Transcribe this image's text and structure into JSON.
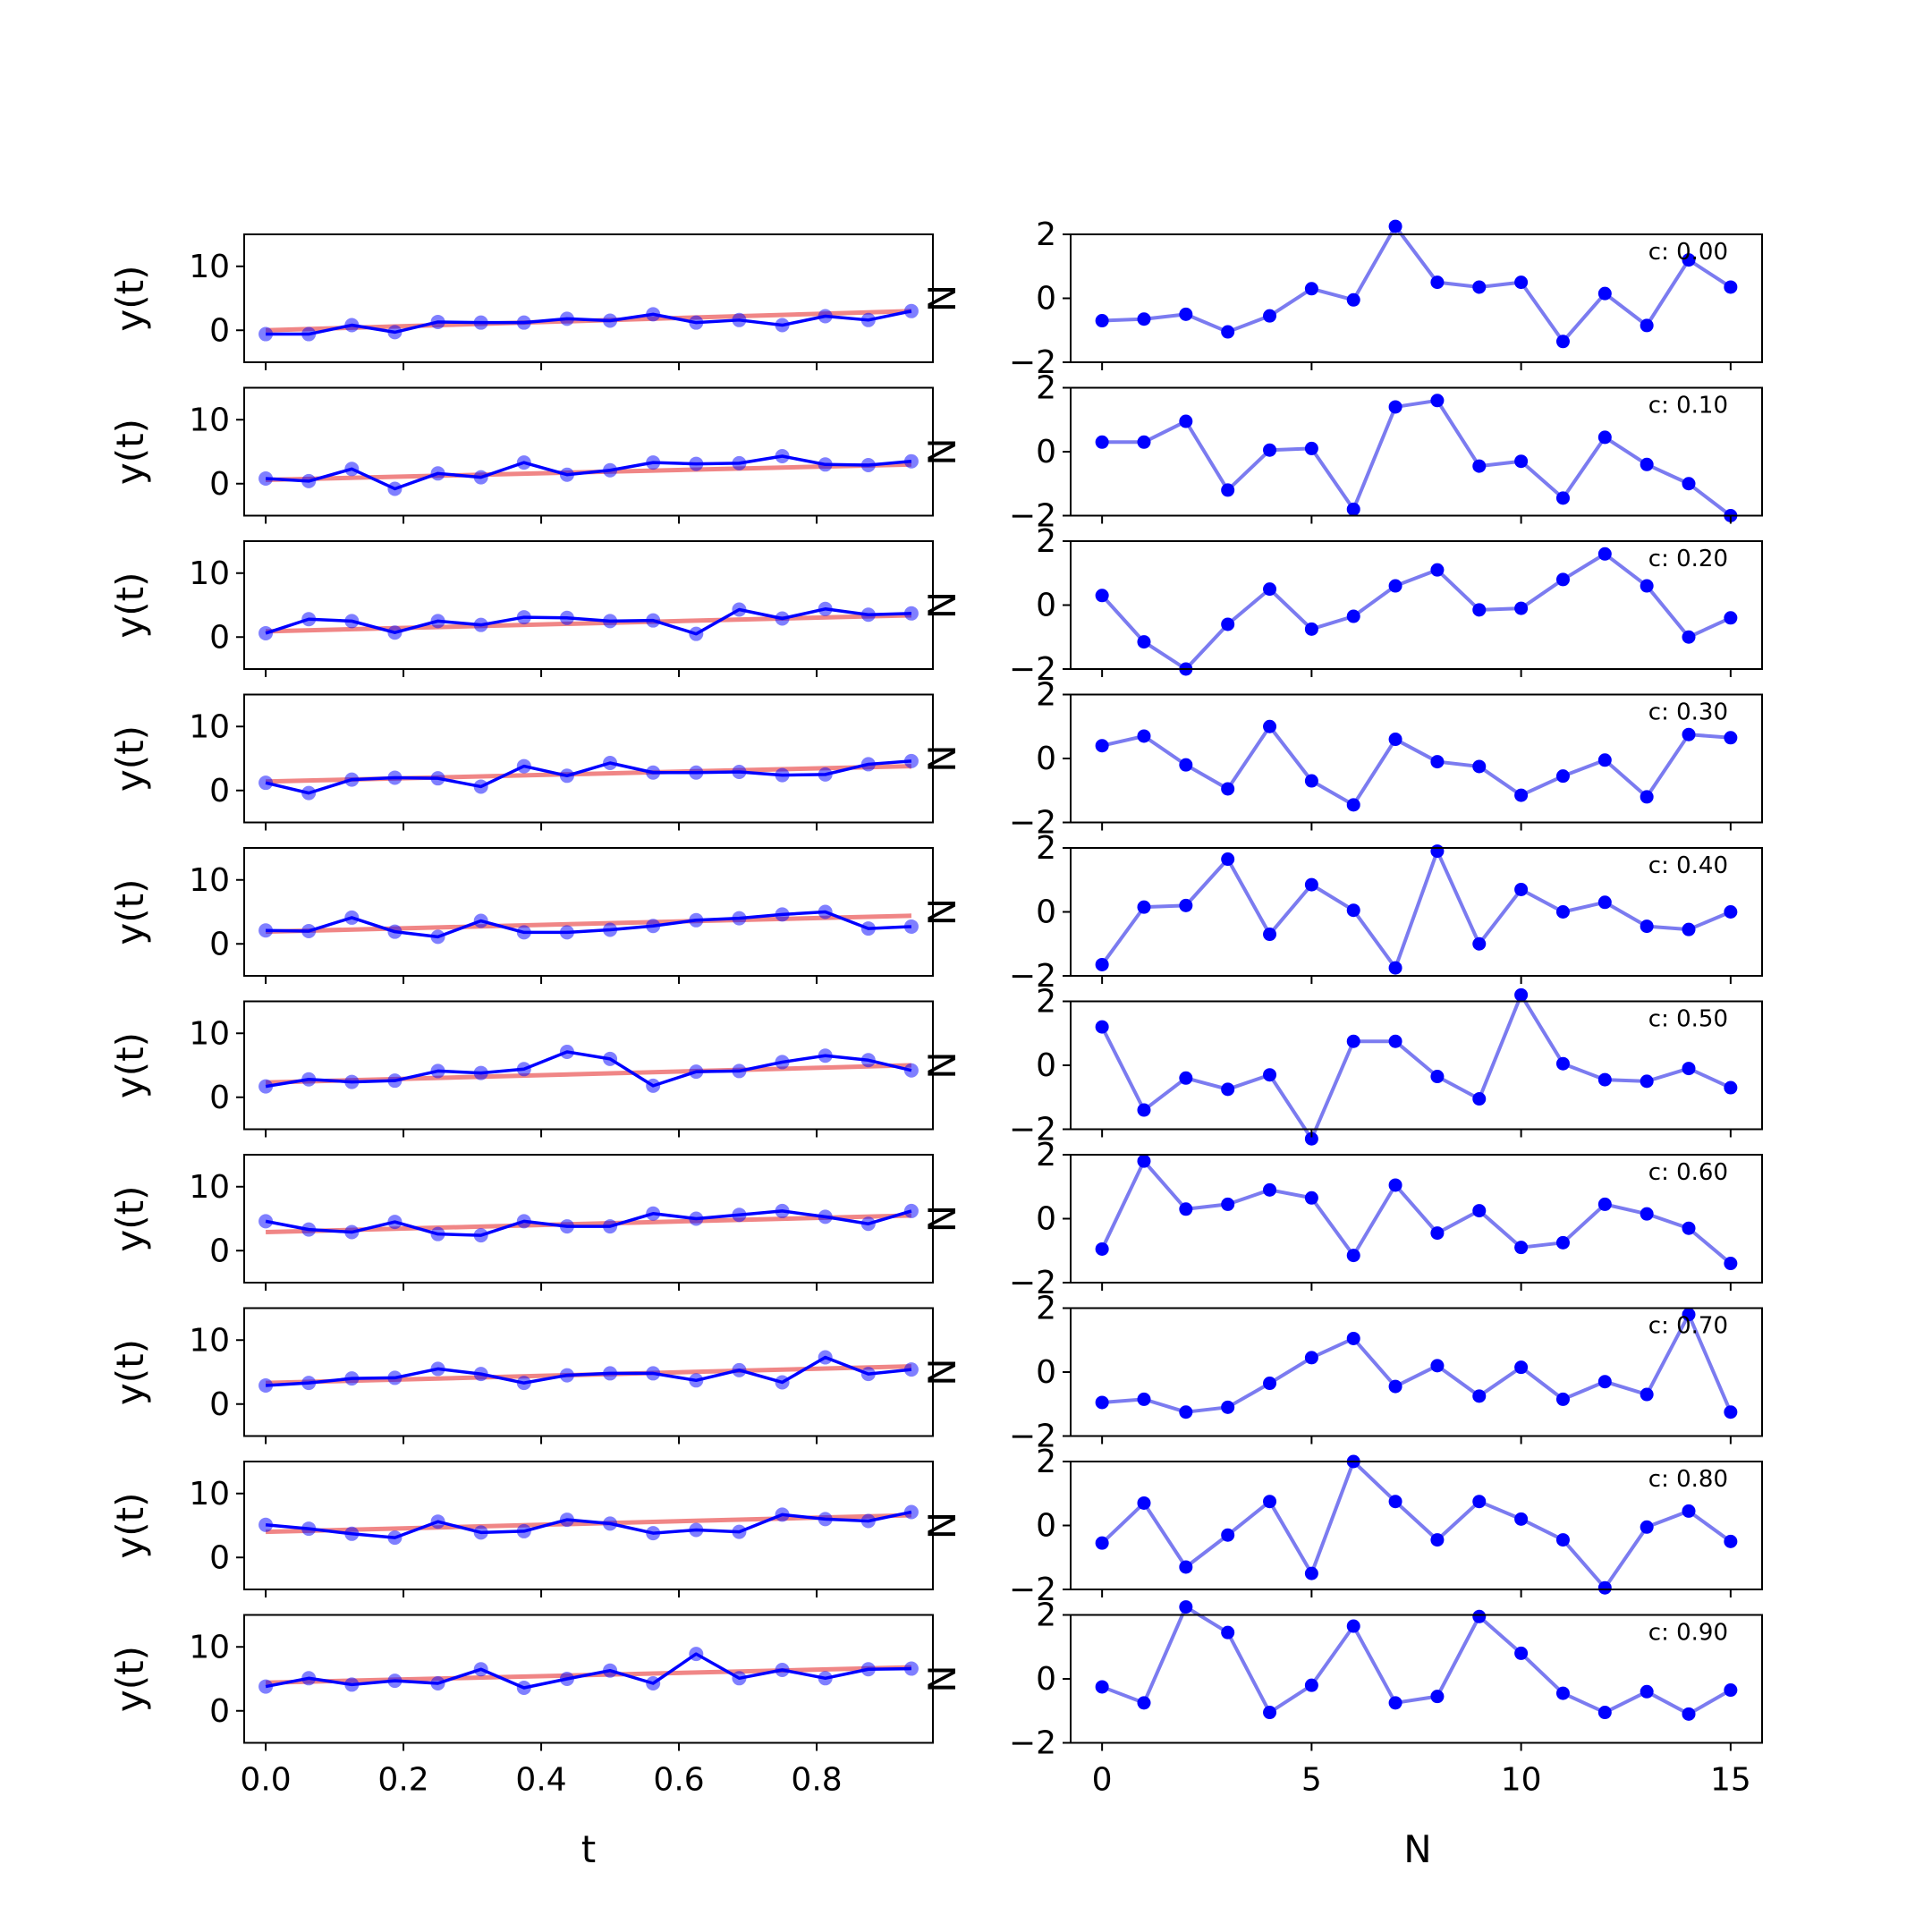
{
  "chart_data": {
    "type": "line",
    "left_column": {
      "xlabel": "t",
      "ylabel": "y(t)",
      "xlim": [
        -0.03125,
        0.96875
      ],
      "ylim": [
        -5,
        15
      ],
      "xticks": [
        0.0,
        0.2,
        0.4,
        0.6,
        0.8
      ],
      "xtick_labels": [
        "0.0",
        "0.2",
        "0.4",
        "0.6",
        "0.8"
      ],
      "yticks": [
        0,
        10
      ],
      "ytick_labels": [
        "0",
        "10"
      ],
      "x": [
        0,
        0.0625,
        0.125,
        0.1875,
        0.25,
        0.3125,
        0.375,
        0.4375,
        0.5,
        0.5625,
        0.625,
        0.6875,
        0.75,
        0.8125,
        0.875,
        0.9375
      ],
      "series_color": "#0000ff",
      "trend_color": "#f08080"
    },
    "right_column": {
      "xlabel": "N",
      "ylabel_glyph": "N",
      "xlim": [
        -0.75,
        15.75
      ],
      "ylim": [
        -2,
        2
      ],
      "xticks": [
        0,
        5,
        10,
        15
      ],
      "xtick_labels": [
        "0",
        "5",
        "10",
        "15"
      ],
      "yticks": [
        -2,
        0,
        2
      ],
      "ytick_labels": [
        "−2",
        "0",
        "2"
      ],
      "x": [
        0,
        1,
        2,
        3,
        4,
        5,
        6,
        7,
        8,
        9,
        10,
        11,
        12,
        13,
        14,
        15
      ],
      "line_color": "#7b7bf0",
      "marker_color": "#0000ff"
    },
    "panels": [
      {
        "annotation": "c: 0.00",
        "trend": [
          0.0,
          3.0
        ],
        "y": [
          -0.6,
          -0.6,
          0.8,
          -0.3,
          1.3,
          1.2,
          1.2,
          1.8,
          1.5,
          2.5,
          1.2,
          1.6,
          0.8,
          2.2,
          1.6,
          3.0
        ],
        "noise": [
          -0.7,
          -0.65,
          -0.5,
          -1.05,
          -0.55,
          0.3,
          -0.05,
          2.25,
          0.5,
          0.35,
          0.5,
          -1.35,
          0.15,
          -0.85,
          1.2,
          0.35
        ]
      },
      {
        "annotation": "c: 0.10",
        "trend": [
          0.6,
          3.0
        ],
        "y": [
          0.8,
          0.4,
          2.3,
          -0.8,
          1.6,
          1.0,
          3.3,
          1.4,
          2.1,
          3.3,
          3.1,
          3.2,
          4.3,
          3.0,
          2.9,
          3.5
        ],
        "noise": [
          0.3,
          0.3,
          0.95,
          -1.2,
          0.05,
          0.1,
          -1.8,
          1.4,
          1.6,
          -0.45,
          -0.3,
          -1.45,
          0.45,
          -0.4,
          -1.0,
          -2.0
        ]
      },
      {
        "annotation": "c: 0.20",
        "trend": [
          0.9,
          3.4
        ],
        "y": [
          0.6,
          2.8,
          2.5,
          0.7,
          2.5,
          1.9,
          3.1,
          3.0,
          2.5,
          2.6,
          0.5,
          4.3,
          2.9,
          4.4,
          3.5,
          3.7
        ],
        "noise": [
          0.3,
          -1.15,
          -2.0,
          -0.6,
          0.5,
          -0.75,
          -0.35,
          0.6,
          1.1,
          -0.15,
          -0.1,
          0.8,
          1.6,
          0.6,
          -1.0,
          -0.4
        ]
      },
      {
        "annotation": "c: 0.30",
        "trend": [
          1.4,
          3.8
        ],
        "y": [
          1.2,
          -0.4,
          1.7,
          2.0,
          1.9,
          0.6,
          3.8,
          2.3,
          4.3,
          2.8,
          2.8,
          2.9,
          2.4,
          2.5,
          4.1,
          4.6
        ],
        "noise": [
          0.4,
          0.7,
          -0.2,
          -0.95,
          1.0,
          -0.7,
          -1.45,
          0.6,
          -0.1,
          -0.25,
          -1.15,
          -0.55,
          -0.05,
          -1.2,
          0.75,
          0.65
        ]
      },
      {
        "annotation": "c: 0.40",
        "trend": [
          1.9,
          4.4
        ],
        "y": [
          2.1,
          2.0,
          4.1,
          1.9,
          1.1,
          3.6,
          1.8,
          1.8,
          2.2,
          2.8,
          3.7,
          4.0,
          4.6,
          5.0,
          2.4,
          2.7
        ],
        "noise": [
          -1.65,
          0.15,
          0.2,
          1.65,
          -0.7,
          0.85,
          0.05,
          -1.75,
          1.9,
          -1.0,
          0.7,
          0.0,
          0.3,
          -0.45,
          -0.55,
          0.0
        ]
      },
      {
        "annotation": "c: 0.50",
        "trend": [
          2.3,
          5.0
        ],
        "y": [
          1.7,
          2.8,
          2.4,
          2.6,
          4.1,
          3.8,
          4.4,
          7.1,
          6.0,
          1.8,
          4.0,
          4.1,
          5.5,
          6.5,
          5.8,
          4.2
        ],
        "noise": [
          1.2,
          -1.4,
          -0.4,
          -0.75,
          -0.3,
          -2.3,
          0.75,
          0.75,
          -0.35,
          -1.05,
          2.2,
          0.05,
          -0.45,
          -0.5,
          -0.1,
          -0.7
        ]
      },
      {
        "annotation": "c: 0.60",
        "trend": [
          2.9,
          5.5
        ],
        "y": [
          4.6,
          3.3,
          2.9,
          4.5,
          2.6,
          2.4,
          4.6,
          3.8,
          3.8,
          5.8,
          5.0,
          5.6,
          6.2,
          5.3,
          4.2,
          6.2
        ],
        "noise": [
          -0.95,
          1.8,
          0.3,
          0.45,
          0.9,
          0.65,
          -1.15,
          1.05,
          -0.45,
          0.25,
          -0.9,
          -0.75,
          0.45,
          0.15,
          -0.3,
          -1.4
        ]
      },
      {
        "annotation": "c: 0.70",
        "trend": [
          3.3,
          5.9
        ],
        "y": [
          2.9,
          3.3,
          4.0,
          4.1,
          5.5,
          4.7,
          3.3,
          4.5,
          4.8,
          4.8,
          3.7,
          5.3,
          3.4,
          7.3,
          4.7,
          5.4
        ],
        "noise": [
          -0.95,
          -0.85,
          -1.25,
          -1.1,
          -0.35,
          0.45,
          1.05,
          -0.45,
          0.2,
          -0.75,
          0.15,
          -0.85,
          -0.3,
          -0.7,
          1.8,
          -1.25
        ]
      },
      {
        "annotation": "c: 0.80",
        "trend": [
          4.0,
          6.6
        ],
        "y": [
          5.1,
          4.5,
          3.7,
          3.1,
          5.6,
          3.9,
          4.1,
          5.9,
          5.3,
          3.8,
          4.3,
          4.0,
          6.7,
          6.0,
          5.7,
          7.1
        ],
        "noise": [
          -0.55,
          0.7,
          -1.3,
          -0.3,
          0.75,
          -1.5,
          2.0,
          0.75,
          -0.45,
          0.75,
          0.2,
          -0.45,
          -1.95,
          -0.05,
          0.45,
          -0.5
        ]
      },
      {
        "annotation": "c: 0.90",
        "trend": [
          4.4,
          6.8
        ],
        "y": [
          3.8,
          5.1,
          4.1,
          4.7,
          4.3,
          6.5,
          3.6,
          5.0,
          6.3,
          4.3,
          8.9,
          5.1,
          6.4,
          5.1,
          6.5,
          6.6
        ],
        "noise": [
          -0.25,
          -0.75,
          2.25,
          1.45,
          -1.05,
          -0.2,
          1.65,
          -0.75,
          -0.55,
          1.95,
          0.8,
          -0.45,
          -1.05,
          -0.4,
          -1.1,
          -0.35
        ]
      }
    ]
  }
}
